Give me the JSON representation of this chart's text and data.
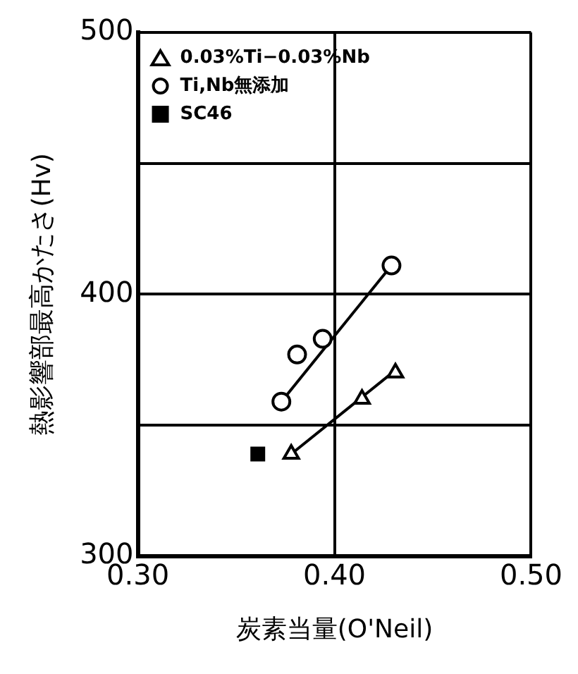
{
  "chart_data": {
    "type": "scatter",
    "xlabel": "炭素当量(O'Neil)",
    "ylabel": "熱影響部最高かたさ(Hv)",
    "xlim": [
      0.3,
      0.5
    ],
    "xticks": [
      {
        "value": 0.3,
        "label": "0.30"
      },
      {
        "value": 0.4,
        "label": "0.40"
      },
      {
        "value": 0.5,
        "label": "0.50"
      }
    ],
    "ylim": [
      300,
      500
    ],
    "yticks": [
      300,
      {
        "value": 350,
        "label": null
      },
      400,
      {
        "value": 450,
        "label": null
      },
      500
    ],
    "grid": true,
    "legend": "top left",
    "series": [
      {
        "name": "0.03%Ti−0.03%Nb",
        "color": "#000000",
        "marker": "triangle",
        "x": [
          0.378,
          0.414,
          0.431
        ],
        "values": [
          339,
          360,
          370
        ]
      },
      {
        "name": "Ti,Nb無添加",
        "color": "#000000",
        "marker": "circle",
        "x": [
          0.373,
          0.381,
          0.394,
          0.429
        ],
        "values": [
          359,
          377,
          383,
          411
        ]
      },
      {
        "name": "SC46",
        "color": "#000000",
        "marker": "square",
        "x": [
          0.361
        ],
        "values": [
          339
        ]
      },
      {
        "type": "line",
        "color": "#000000",
        "marker": "none",
        "x": [
          0.378,
          0.431
        ],
        "values": [
          339,
          371
        ]
      },
      {
        "type": "line",
        "color": "#000000",
        "marker": "none",
        "x": [
          0.373,
          0.429
        ],
        "values": [
          359,
          411
        ]
      }
    ]
  }
}
